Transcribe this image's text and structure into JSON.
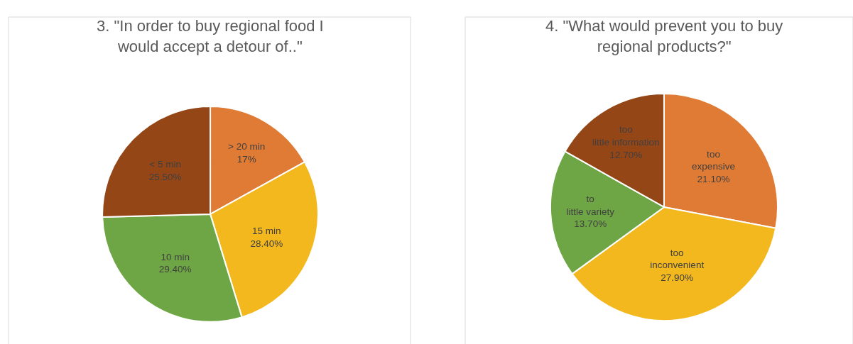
{
  "chart_data": [
    {
      "type": "pie",
      "title": "3. \"In order to buy regional food I\nwould accept a detour of..\"",
      "categories": [
        "> 20 min",
        "15 min",
        "10 min",
        "< 5 min"
      ],
      "values": [
        17,
        28.4,
        29.4,
        25.5
      ],
      "value_labels": [
        "17%",
        "28.40%",
        "29.40%",
        "25.50%"
      ],
      "colors": [
        "#e07b35",
        "#f2b81d",
        "#6fa645",
        "#944617"
      ]
    },
    {
      "type": "pie",
      "title": "4. \"What would prevent you to buy\nregional products?\"",
      "categories": [
        "too expensive",
        "too inconvenient",
        "to little variety",
        "too little information"
      ],
      "values": [
        21.1,
        27.9,
        13.7,
        12.7
      ],
      "value_labels": [
        "21.10%",
        "27.90%",
        "13.70%",
        "12.70%"
      ],
      "colors": [
        "#e07b35",
        "#f2b81d",
        "#6fa645",
        "#944617"
      ]
    }
  ]
}
